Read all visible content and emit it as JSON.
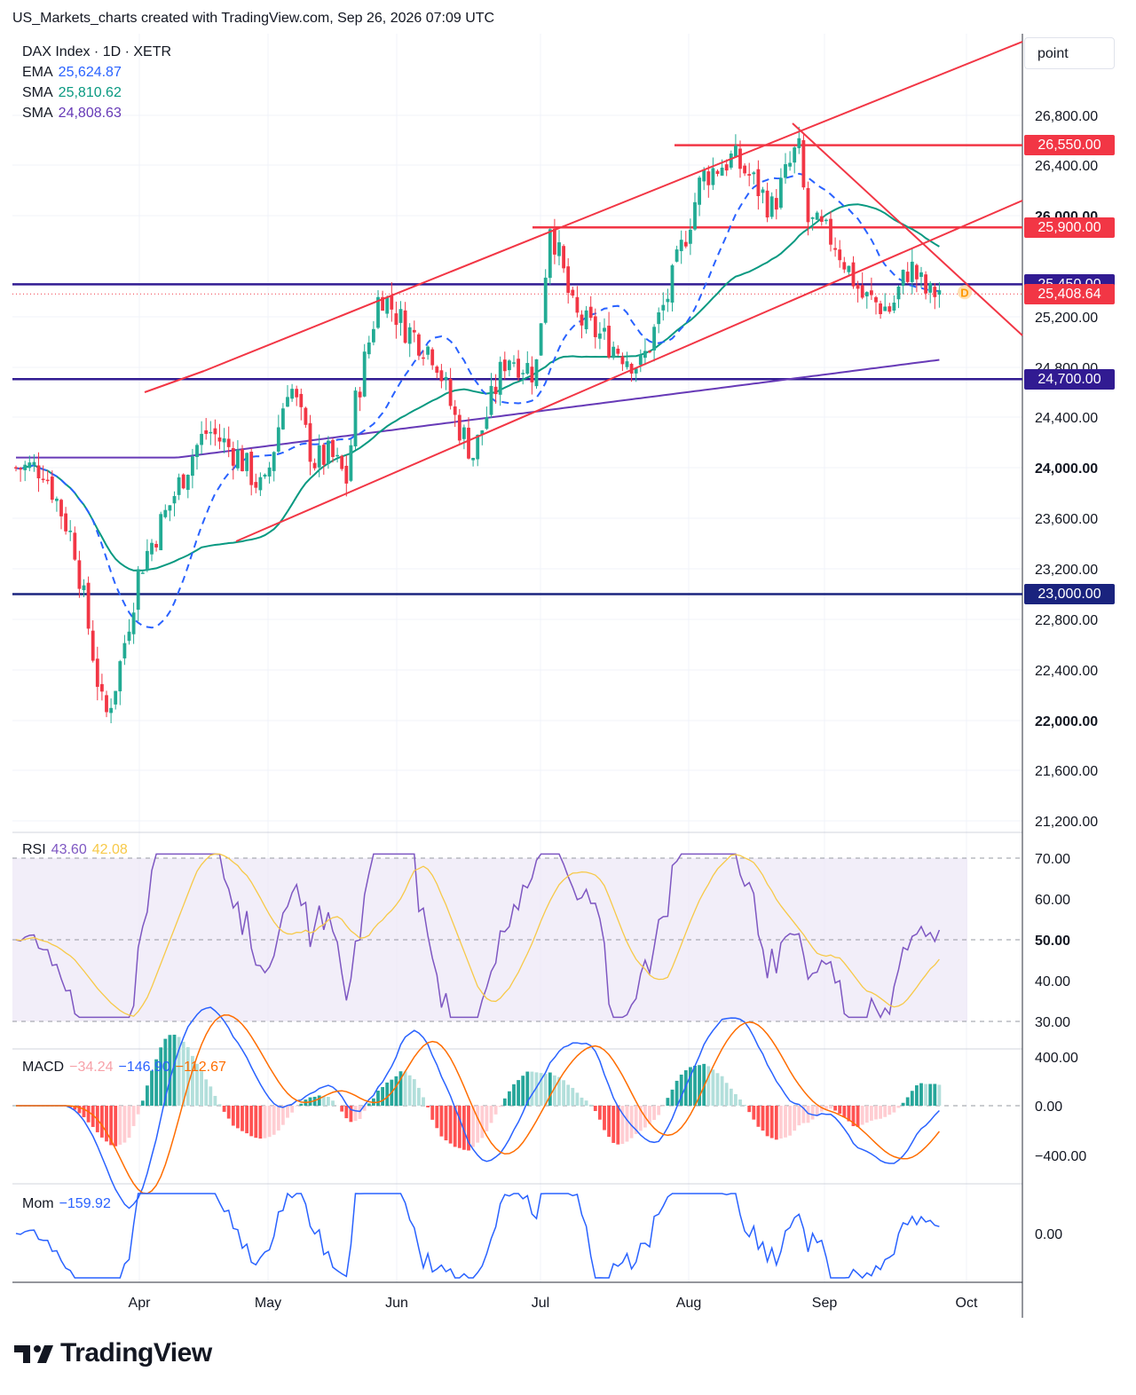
{
  "header": "US_Markets_charts created with TradingView.com, Sep 26, 2026 07:09 UTC",
  "brand": "TradingView",
  "unit_button": "point",
  "legend": {
    "symbol": "DAX Index · 1D · XETR",
    "ema_label": "EMA",
    "ema_value": "25,624.87",
    "sma1_label": "SMA",
    "sma1_value": "25,810.62",
    "sma2_label": "SMA",
    "sma2_value": "24,808.63",
    "rsi_label": "RSI",
    "rsi_value": "43.60",
    "rsi_ma_value": "42.08",
    "macd_label": "MACD",
    "macd_hist": "−34.24",
    "macd_value": "−146.90",
    "macd_signal": "−112.67",
    "mom_label": "Mom",
    "mom_value": "−159.92"
  },
  "colors": {
    "up": "#22ab94",
    "down": "#f23645",
    "ema": "#2962ff",
    "sma1": "#089981",
    "sma2": "#673ab7",
    "trend": "#f23645",
    "level": "#311b92",
    "rsi": "#7e57c2",
    "rsi_ma": "#f7c948",
    "macd": "#2962ff",
    "signal": "#ff6d00",
    "mom": "#2962ff"
  },
  "chart_data": {
    "type": "candlestick",
    "price_axis_ticks": [
      "26,800.00",
      "26,400.00",
      "26,000.00",
      "25,200.00",
      "24,800.00",
      "24,400.00",
      "24,000.00",
      "23,600.00",
      "23,200.00",
      "22,800.00",
      "22,400.00",
      "22,000.00",
      "21,600.00",
      "21,200.00"
    ],
    "bold_ticks": [
      "26,000.00",
      "24,000.00",
      "22,000.00"
    ],
    "month_labels": [
      "Apr",
      "May",
      "Jun",
      "Jul",
      "Aug",
      "Sep",
      "Oct"
    ],
    "horizontal_levels": [
      {
        "value": 26550,
        "label": "26,550.00",
        "color": "#f23645"
      },
      {
        "value": 25900,
        "label": "25,900.00",
        "color": "#f23645"
      },
      {
        "value": 25450,
        "label": "25,450.00",
        "color": "#311b92"
      },
      {
        "value": 24700,
        "label": "24,700.00",
        "color": "#311b92"
      },
      {
        "value": 23000,
        "label": "23,000.00",
        "color": "#1a237e"
      }
    ],
    "last_price": {
      "value": 25408.64,
      "label": "25,408.64"
    },
    "rsi_axis": [
      "70.00",
      "60.00",
      "50.00",
      "40.00",
      "30.00"
    ],
    "macd_axis": [
      "400.00",
      "0.00",
      "−400.00"
    ],
    "mom_axis": [
      "0.00"
    ],
    "close_points": [
      {
        "x": "Mar 10",
        "c": 24000
      },
      {
        "x": "Mar 17",
        "c": 23400
      },
      {
        "x": "Mar 20",
        "c": 22800
      },
      {
        "x": "Mar 24",
        "c": 22000
      },
      {
        "x": "Mar 27",
        "c": 22350
      },
      {
        "x": "Apr 1",
        "c": 23200
      },
      {
        "x": "Apr 8",
        "c": 23700
      },
      {
        "x": "Apr 14",
        "c": 24150
      },
      {
        "x": "Apr 17",
        "c": 24300
      },
      {
        "x": "Apr 24",
        "c": 24100
      },
      {
        "x": "Apr 30",
        "c": 23800
      },
      {
        "x": "May 6",
        "c": 24700
      },
      {
        "x": "May 12",
        "c": 24050
      },
      {
        "x": "May 16",
        "c": 24100
      },
      {
        "x": "May 20",
        "c": 23900
      },
      {
        "x": "May 22",
        "c": 24500
      },
      {
        "x": "May 28",
        "c": 25400
      },
      {
        "x": "Jun 3",
        "c": 25100
      },
      {
        "x": "Jun 9",
        "c": 24900
      },
      {
        "x": "Jun 13",
        "c": 24400
      },
      {
        "x": "Jun 17",
        "c": 24100
      },
      {
        "x": "Jun 24",
        "c": 24900
      },
      {
        "x": "Jun 30",
        "c": 24750
      },
      {
        "x": "Jul 3",
        "c": 25950
      },
      {
        "x": "Jul 8",
        "c": 25200
      },
      {
        "x": "Jul 15",
        "c": 25000
      },
      {
        "x": "Jul 22",
        "c": 24800
      },
      {
        "x": "Jul 28",
        "c": 25400
      },
      {
        "x": "Aug 4",
        "c": 26300
      },
      {
        "x": "Aug 11",
        "c": 26450
      },
      {
        "x": "Aug 15",
        "c": 26300
      },
      {
        "x": "Aug 20",
        "c": 26050
      },
      {
        "x": "Aug 26",
        "c": 26550
      },
      {
        "x": "Aug 28",
        "c": 25950
      },
      {
        "x": "Sep 3",
        "c": 25800
      },
      {
        "x": "Sep 9",
        "c": 25350
      },
      {
        "x": "Sep 15",
        "c": 25250
      },
      {
        "x": "Sep 19",
        "c": 25600
      },
      {
        "x": "Sep 23",
        "c": 25350
      },
      {
        "x": "Sep 25",
        "c": 25408.64
      }
    ]
  }
}
